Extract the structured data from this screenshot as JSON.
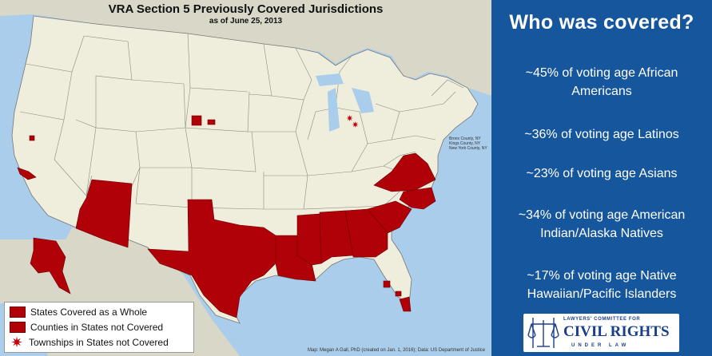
{
  "map": {
    "title": "VRA Section 5 Previously Covered Jurisdictions",
    "subtitle": "as of June 25, 2013",
    "ny_note": [
      "Bronx County, NY",
      "Kings County, NY",
      "New York County, NY"
    ],
    "legend": {
      "states_whole": "States Covered as a Whole",
      "counties": "Counties in States not Covered",
      "townships": "Townships in States not Covered"
    },
    "credit": "Map: Megan A Gall, PhD (created on Jan. 1, 2016); Data: US Department of Justice",
    "colors": {
      "water": "#a9cdea",
      "land": "#efeedd",
      "neighbor_land": "#d8d7c8",
      "covered": "#b00008",
      "border": "#777777"
    }
  },
  "info": {
    "heading": "Who was covered?",
    "stats": [
      [
        "~45% of voting age African",
        "Americans"
      ],
      [
        "~36% of voting age Latinos"
      ],
      [
        "~23% of voting age Asians"
      ],
      [
        "~34% of voting age American",
        "Indian/Alaska Natives"
      ],
      [
        "~17% of voting age Native",
        "Hawaiian/Pacific Islanders"
      ]
    ],
    "background": "#16569c"
  },
  "logo": {
    "top": "LAWYERS' COMMITTEE FOR",
    "main": "CIVIL RIGHTS",
    "bottom": "UNDER LAW",
    "color": "#1a3f8a"
  }
}
